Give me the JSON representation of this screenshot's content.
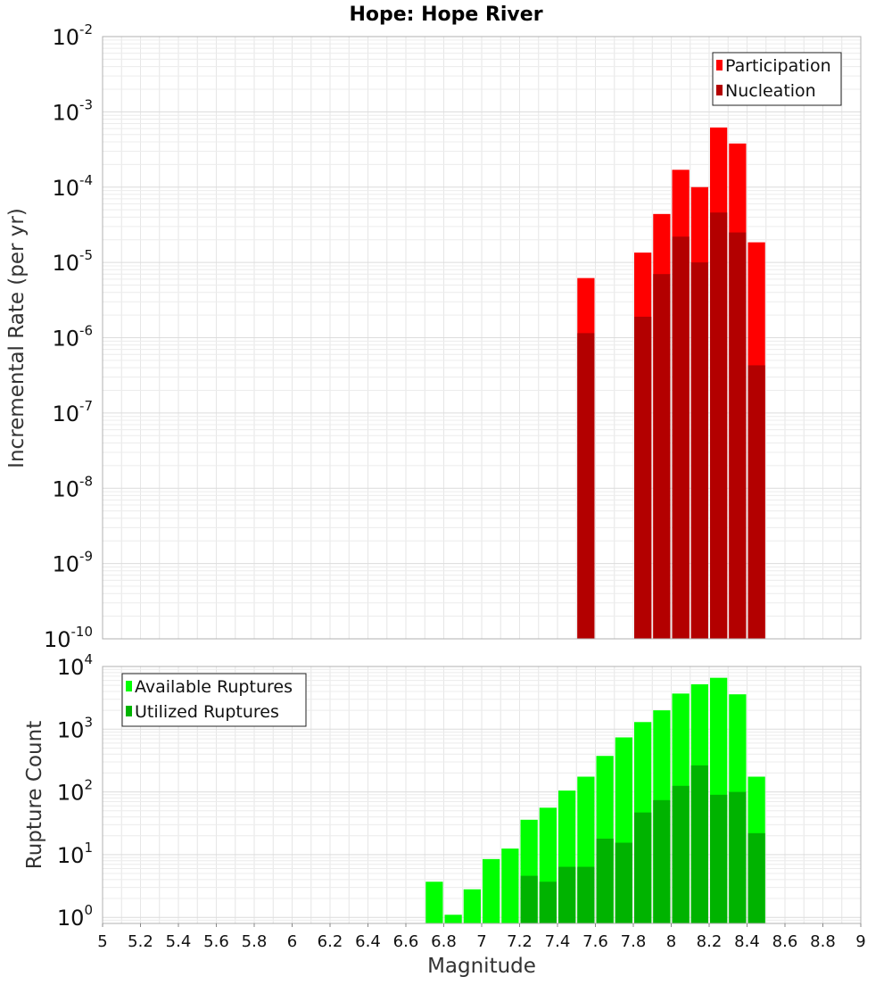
{
  "chart_data": [
    {
      "type": "bar",
      "title": "Hope: Hope River",
      "xlabel": "",
      "ylabel": "Incremental Rate (per yr)",
      "yscale": "log",
      "ylim": [
        1e-10,
        0.01
      ],
      "xlim": [
        5,
        9
      ],
      "bin_width": 0.1,
      "y_ticks": [
        {
          "base": "10",
          "exp": "-2"
        },
        {
          "base": "10",
          "exp": "-3"
        },
        {
          "base": "10",
          "exp": "-4"
        },
        {
          "base": "10",
          "exp": "-5"
        },
        {
          "base": "10",
          "exp": "-6"
        },
        {
          "base": "10",
          "exp": "-7"
        },
        {
          "base": "10",
          "exp": "-8"
        },
        {
          "base": "10",
          "exp": "-9"
        },
        {
          "base": "10",
          "exp": "-10"
        }
      ],
      "grid": true,
      "legend_position": "top-right",
      "x": [
        7.55,
        7.85,
        7.95,
        8.05,
        8.15,
        8.25,
        8.35,
        8.45
      ],
      "series": [
        {
          "name": "Participation",
          "color": "#ff0000",
          "values": [
            6.2e-06,
            1.35e-05,
            4.4e-05,
            0.00017,
            0.0001,
            0.00062,
            0.00038,
            1.85e-05
          ]
        },
        {
          "name": "Nucleation",
          "color": "#b30000",
          "values": [
            1.15e-06,
            1.9e-06,
            7e-06,
            2.2e-05,
            1e-05,
            4.6e-05,
            2.5e-05,
            4.3e-07
          ]
        }
      ]
    },
    {
      "type": "bar",
      "title": "",
      "xlabel": "Magnitude",
      "ylabel": "Rupture Count",
      "yscale": "log",
      "ylim": [
        0.8,
        10000
      ],
      "xlim": [
        5,
        9
      ],
      "bin_width": 0.1,
      "y_ticks": [
        {
          "base": "10",
          "exp": "4"
        },
        {
          "base": "10",
          "exp": "3"
        },
        {
          "base": "10",
          "exp": "2"
        },
        {
          "base": "10",
          "exp": "1"
        },
        {
          "base": "10",
          "exp": "0"
        }
      ],
      "x_ticks": [
        "5",
        "5.2",
        "5.4",
        "5.6",
        "5.8",
        "6",
        "6.2",
        "6.4",
        "6.6",
        "6.8",
        "7",
        "7.2",
        "7.4",
        "7.6",
        "7.8",
        "8",
        "8.2",
        "8.4",
        "8.6",
        "8.8",
        "9"
      ],
      "grid": true,
      "legend_position": "top-left",
      "x": [
        6.75,
        6.85,
        6.95,
        7.05,
        7.15,
        7.25,
        7.35,
        7.45,
        7.55,
        7.65,
        7.75,
        7.85,
        7.95,
        8.05,
        8.15,
        8.25,
        8.35,
        8.45
      ],
      "series": [
        {
          "name": "Available Ruptures",
          "color": "#00ff00",
          "values": [
            3.7,
            1.1,
            2.8,
            8.5,
            12.5,
            36,
            56,
            105,
            175,
            375,
            740,
            1300,
            2000,
            3700,
            5200,
            6600,
            3600,
            175
          ]
        },
        {
          "name": "Utilized Ruptures",
          "color": "#00b300",
          "values": [
            null,
            null,
            null,
            null,
            null,
            4.6,
            3.7,
            6.4,
            6.4,
            18,
            15.5,
            47,
            74,
            125,
            265,
            90,
            100,
            22
          ]
        }
      ]
    }
  ]
}
